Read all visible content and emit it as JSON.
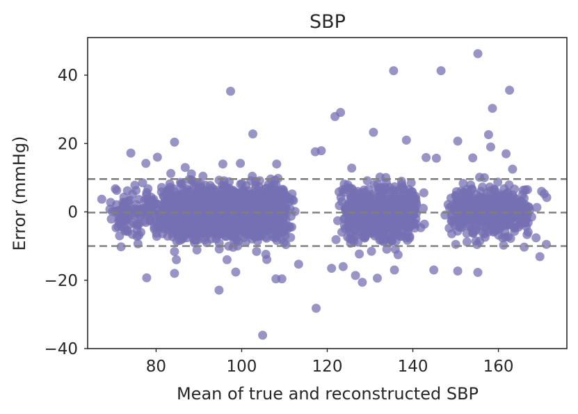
{
  "chart_data": {
    "type": "scatter",
    "title": "SBP",
    "xlabel": "Mean of true and reconstructed SBP",
    "ylabel": "Error (mmHg)",
    "xlim": [
      64,
      176
    ],
    "ylim": [
      -40,
      51
    ],
    "xticks": [
      80,
      100,
      120,
      140,
      160
    ],
    "yticks": [
      -40,
      -20,
      0,
      20,
      40
    ],
    "xtick_labels": [
      "80",
      "100",
      "120",
      "140",
      "160"
    ],
    "ytick_labels": [
      "−40",
      "−20",
      "0",
      "20",
      "40"
    ],
    "grid": false,
    "legend": "none",
    "point_color": "#7570b3",
    "point_opacity": 0.75,
    "reference_lines": [
      {
        "name": "upper limit of agreement",
        "y": 9.6,
        "style": "dashed",
        "color": "#808080"
      },
      {
        "name": "mean bias",
        "y": -0.2,
        "style": "dashed",
        "color": "#808080"
      },
      {
        "name": "lower limit of agreement",
        "y": -10.0,
        "style": "dashed",
        "color": "#808080"
      }
    ],
    "dense_clusters": [
      {
        "x_center": 96,
        "x_spread": 14,
        "y_sd": 3.8,
        "count": 1500
      },
      {
        "x_center": 132,
        "x_spread": 8,
        "y_sd": 4.0,
        "count": 600
      },
      {
        "x_center": 158,
        "x_spread": 8,
        "y_sd": 3.6,
        "count": 450
      },
      {
        "x_center": 76,
        "x_spread": 5,
        "y_sd": 3.0,
        "count": 120
      }
    ],
    "outliers": [
      {
        "x": 155.2,
        "y": 46.3
      },
      {
        "x": 135.5,
        "y": 41.3
      },
      {
        "x": 146.6,
        "y": 41.3
      },
      {
        "x": 97.4,
        "y": 35.3
      },
      {
        "x": 162.6,
        "y": 35.6
      },
      {
        "x": 158.6,
        "y": 30.3
      },
      {
        "x": 123.1,
        "y": 29.1
      },
      {
        "x": 121.8,
        "y": 27.9
      },
      {
        "x": 130.8,
        "y": 23.3
      },
      {
        "x": 102.6,
        "y": 22.8
      },
      {
        "x": 157.7,
        "y": 22.6
      },
      {
        "x": 150.5,
        "y": 20.7
      },
      {
        "x": 84.3,
        "y": 20.4
      },
      {
        "x": 158.2,
        "y": 19.0
      },
      {
        "x": 138.5,
        "y": 21.0
      },
      {
        "x": 74.1,
        "y": 17.2
      },
      {
        "x": 117.2,
        "y": 17.6
      },
      {
        "x": 118.6,
        "y": 17.9
      },
      {
        "x": 80.3,
        "y": 16.0
      },
      {
        "x": 143.1,
        "y": 15.9
      },
      {
        "x": 145.5,
        "y": 15.7
      },
      {
        "x": 154.0,
        "y": 15.8
      },
      {
        "x": 161.8,
        "y": 17.0
      },
      {
        "x": 77.6,
        "y": 14.2
      },
      {
        "x": 99.7,
        "y": 14.2
      },
      {
        "x": 86.8,
        "y": 13.0
      },
      {
        "x": 163.3,
        "y": 12.5
      },
      {
        "x": 77.8,
        "y": -19.3
      },
      {
        "x": 94.7,
        "y": -22.9
      },
      {
        "x": 117.4,
        "y": -28.2
      },
      {
        "x": 104.9,
        "y": -36.1
      },
      {
        "x": 108.0,
        "y": -19.6
      },
      {
        "x": 109.4,
        "y": -19.6
      },
      {
        "x": 128.2,
        "y": -20.6
      },
      {
        "x": 126.6,
        "y": -18.6
      },
      {
        "x": 135.7,
        "y": -17.0
      },
      {
        "x": 144.9,
        "y": -17.0
      },
      {
        "x": 150.5,
        "y": -17.3
      },
      {
        "x": 155.2,
        "y": -17.7
      },
      {
        "x": 131.7,
        "y": -19.4
      },
      {
        "x": 169.7,
        "y": -13.1
      },
      {
        "x": 168.8,
        "y": -7.6
      },
      {
        "x": 171.2,
        "y": -9.5
      },
      {
        "x": 84.3,
        "y": -18.0
      },
      {
        "x": 98.6,
        "y": -17.6
      },
      {
        "x": 121.0,
        "y": -16.5
      },
      {
        "x": 123.7,
        "y": -16.0
      },
      {
        "x": 113.3,
        "y": -15.3
      },
      {
        "x": 67.3,
        "y": 3.7
      },
      {
        "x": 69.2,
        "y": 0.8
      },
      {
        "x": 70.8,
        "y": 6.3
      },
      {
        "x": 166.8,
        "y": 6.5
      },
      {
        "x": 170.1,
        "y": 6.0
      },
      {
        "x": 171.3,
        "y": 4.2
      },
      {
        "x": 170.7,
        "y": 5.3
      },
      {
        "x": 169.0,
        "y": 1.3
      }
    ]
  }
}
